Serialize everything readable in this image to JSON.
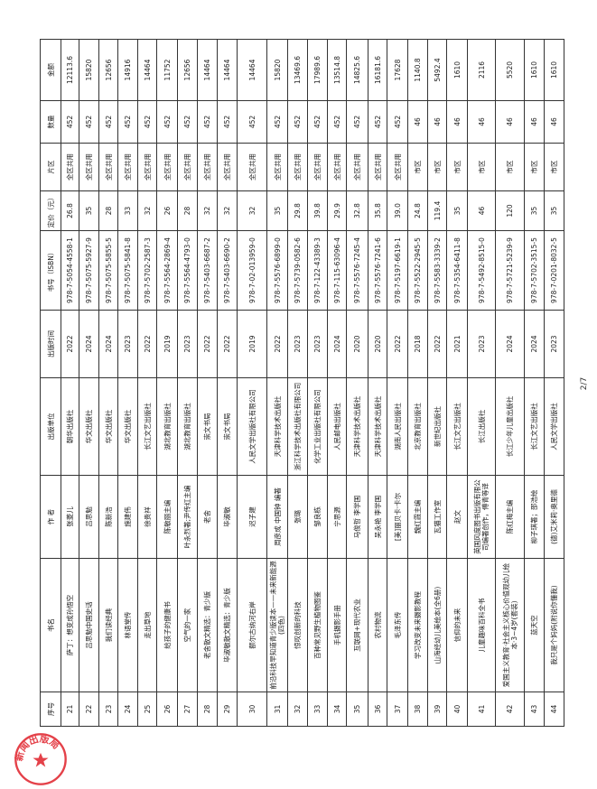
{
  "headers": [
    "序号",
    "书名",
    "作 者",
    "出版单位",
    "出版时间",
    "书号（ISBN）",
    "定价（元）",
    "片区",
    "数量",
    "金额"
  ],
  "rows": [
    [
      "21",
      "萨丁：想变成孙悟空",
      "张菱儿",
      "朝华出版社",
      "2022",
      "978-7-5054-4558-1",
      "26.8",
      "全区共用",
      "452",
      "12113.6"
    ],
    [
      "22",
      "吕思勉中国史话",
      "吕思勉",
      "华文出版社",
      "2024",
      "978-7-5075-5927-9",
      "35",
      "全区共用",
      "452",
      "15820"
    ],
    [
      "23",
      "我们读经典",
      "陈新浩",
      "华文出版社",
      "2024",
      "978-7-5075-5855-5",
      "28",
      "全区共用",
      "452",
      "12656"
    ],
    [
      "24",
      "林语堂传",
      "施建伟",
      "华文出版社",
      "2023",
      "978-7-5075-5841-8",
      "33",
      "全区共用",
      "452",
      "14916"
    ],
    [
      "25",
      "走出草地",
      "徐贵祥",
      "长江文艺出版社",
      "2022",
      "978-7-5702-2587-3",
      "32",
      "全区共用",
      "452",
      "14464"
    ],
    [
      "26",
      "给孩子的健康书",
      "陈敏丽主编",
      "湖北教育出版社",
      "2019",
      "978-7-5564-2869-4",
      "26",
      "全区共用",
      "452",
      "11752"
    ],
    [
      "27",
      "空气的一家",
      "叶永烈著;尹传红主编",
      "湖北教育出版社",
      "2023",
      "978-7-5564-4793-0",
      "28",
      "全区共用",
      "452",
      "12656"
    ],
    [
      "28",
      "老舍散文精选：青少版",
      "老舍",
      "崇文书局",
      "2022",
      "978-7-5403-6687-2",
      "32",
      "全区共用",
      "452",
      "14464"
    ],
    [
      "29",
      "毕淑敏散文精选：青少版",
      "毕淑敏",
      "崇文书局",
      "2022",
      "978-7-5403-6690-2",
      "32",
      "全区共用",
      "452",
      "14464"
    ],
    [
      "30",
      "额尔古纳河右岸",
      "迟子建",
      "人民文学出版社有限公司",
      "2019",
      "978-7-02-013959-0",
      "32",
      "全区共用",
      "452",
      "14464"
    ],
    [
      "31",
      "前沿科技早知道青少版读本——未来新能源(四色)",
      "周彦成 中国钟 编著",
      "天津科学技术出版社",
      "2022",
      "978-7-5576-6899-0",
      "35",
      "全区共用",
      "452",
      "15820"
    ],
    [
      "32",
      "惊叹创新的科技",
      "张璐",
      "浙江科学技术出版社有限公司",
      "2023",
      "978-7-5739-0582-6",
      "29.8",
      "全区共用",
      "452",
      "13469.6"
    ],
    [
      "33",
      "百种常见野生植物图鉴",
      "邹良栋",
      "化学工业出版社有限公司",
      "2023",
      "978-7-122-43389-3",
      "39.8",
      "全区共用",
      "452",
      "17989.6"
    ],
    [
      "34",
      "手机摄影手册",
      "宁思源",
      "人民邮电出版社",
      "2024",
      "978-7-115-63096-4",
      "29.9",
      "全区共用",
      "452",
      "13514.8"
    ],
    [
      "35",
      "互联网+现代农业",
      "马俊哲 李学国",
      "天津科学技术出版社",
      "2020",
      "978-7-5576-7245-4",
      "32.8",
      "全区共用",
      "452",
      "14825.6"
    ],
    [
      "36",
      "农村物流",
      "吴永艳 李学国",
      "天津科学技术出版社",
      "2020",
      "978-7-5576-7241-6",
      "35.8",
      "全区共用",
      "452",
      "16181.6"
    ],
    [
      "37",
      "毛泽东传",
      "[美]丽贝卡·卡尔",
      "湖南人民出版社",
      "2022",
      "978-7-5197-6619-1",
      "39.0",
      "全区共用",
      "452",
      "17628"
    ],
    [
      "38",
      "学习改变未来摄影教程",
      "魏红霞主编",
      "北京教育出版社",
      "2018",
      "978-7-5522-2945-5",
      "24.8",
      "市区",
      "46",
      "1140.8"
    ],
    [
      "39",
      "山海经幼儿美绘本(全6册)",
      "瓦猫工作室",
      "新世纪出版社",
      "2022",
      "978-7-5583-3339-2",
      "119.4",
      "市区",
      "46",
      "5492.4"
    ],
    [
      "40",
      "信仰的未来",
      "赵文",
      "长江文艺出版社",
      "2021",
      "978-7-5354-6411-8",
      "35",
      "市区",
      "46",
      "1610"
    ],
    [
      "41",
      "儿童趣味百科全书",
      "英国风度图书出版有限公司编著创作，傅青等译",
      "长江出版社",
      "2023",
      "978-7-5492-8515-0",
      "46",
      "市区",
      "46",
      "2116"
    ],
    [
      "42",
      "爱国主义教育·社会主义核心价值观幼儿绘本·3~4岁(套装)",
      "陈红梅主编",
      "长江少年儿童出版社",
      "2024",
      "978-7-5721-5239-9",
      "120",
      "市区",
      "46",
      "5520"
    ],
    [
      "43",
      "蓝天空",
      "柳子琪著；邵浩绘",
      "长江文艺出版社",
      "2024",
      "978-7-5702-3515-5",
      "35",
      "市区",
      "46",
      "1610"
    ],
    [
      "44",
      "我只是个妈妈(附说你懂我)",
      "(德)艾米莉·奥里德",
      "人民文学出版社",
      "2023",
      "978-7-0201-8032-5",
      "35",
      "市区",
      "46",
      "1610"
    ]
  ],
  "page_number": "2/7",
  "stamp_text": "新闻出版局",
  "colors": {
    "stamp": "#e0202a",
    "ink": "#222222"
  }
}
